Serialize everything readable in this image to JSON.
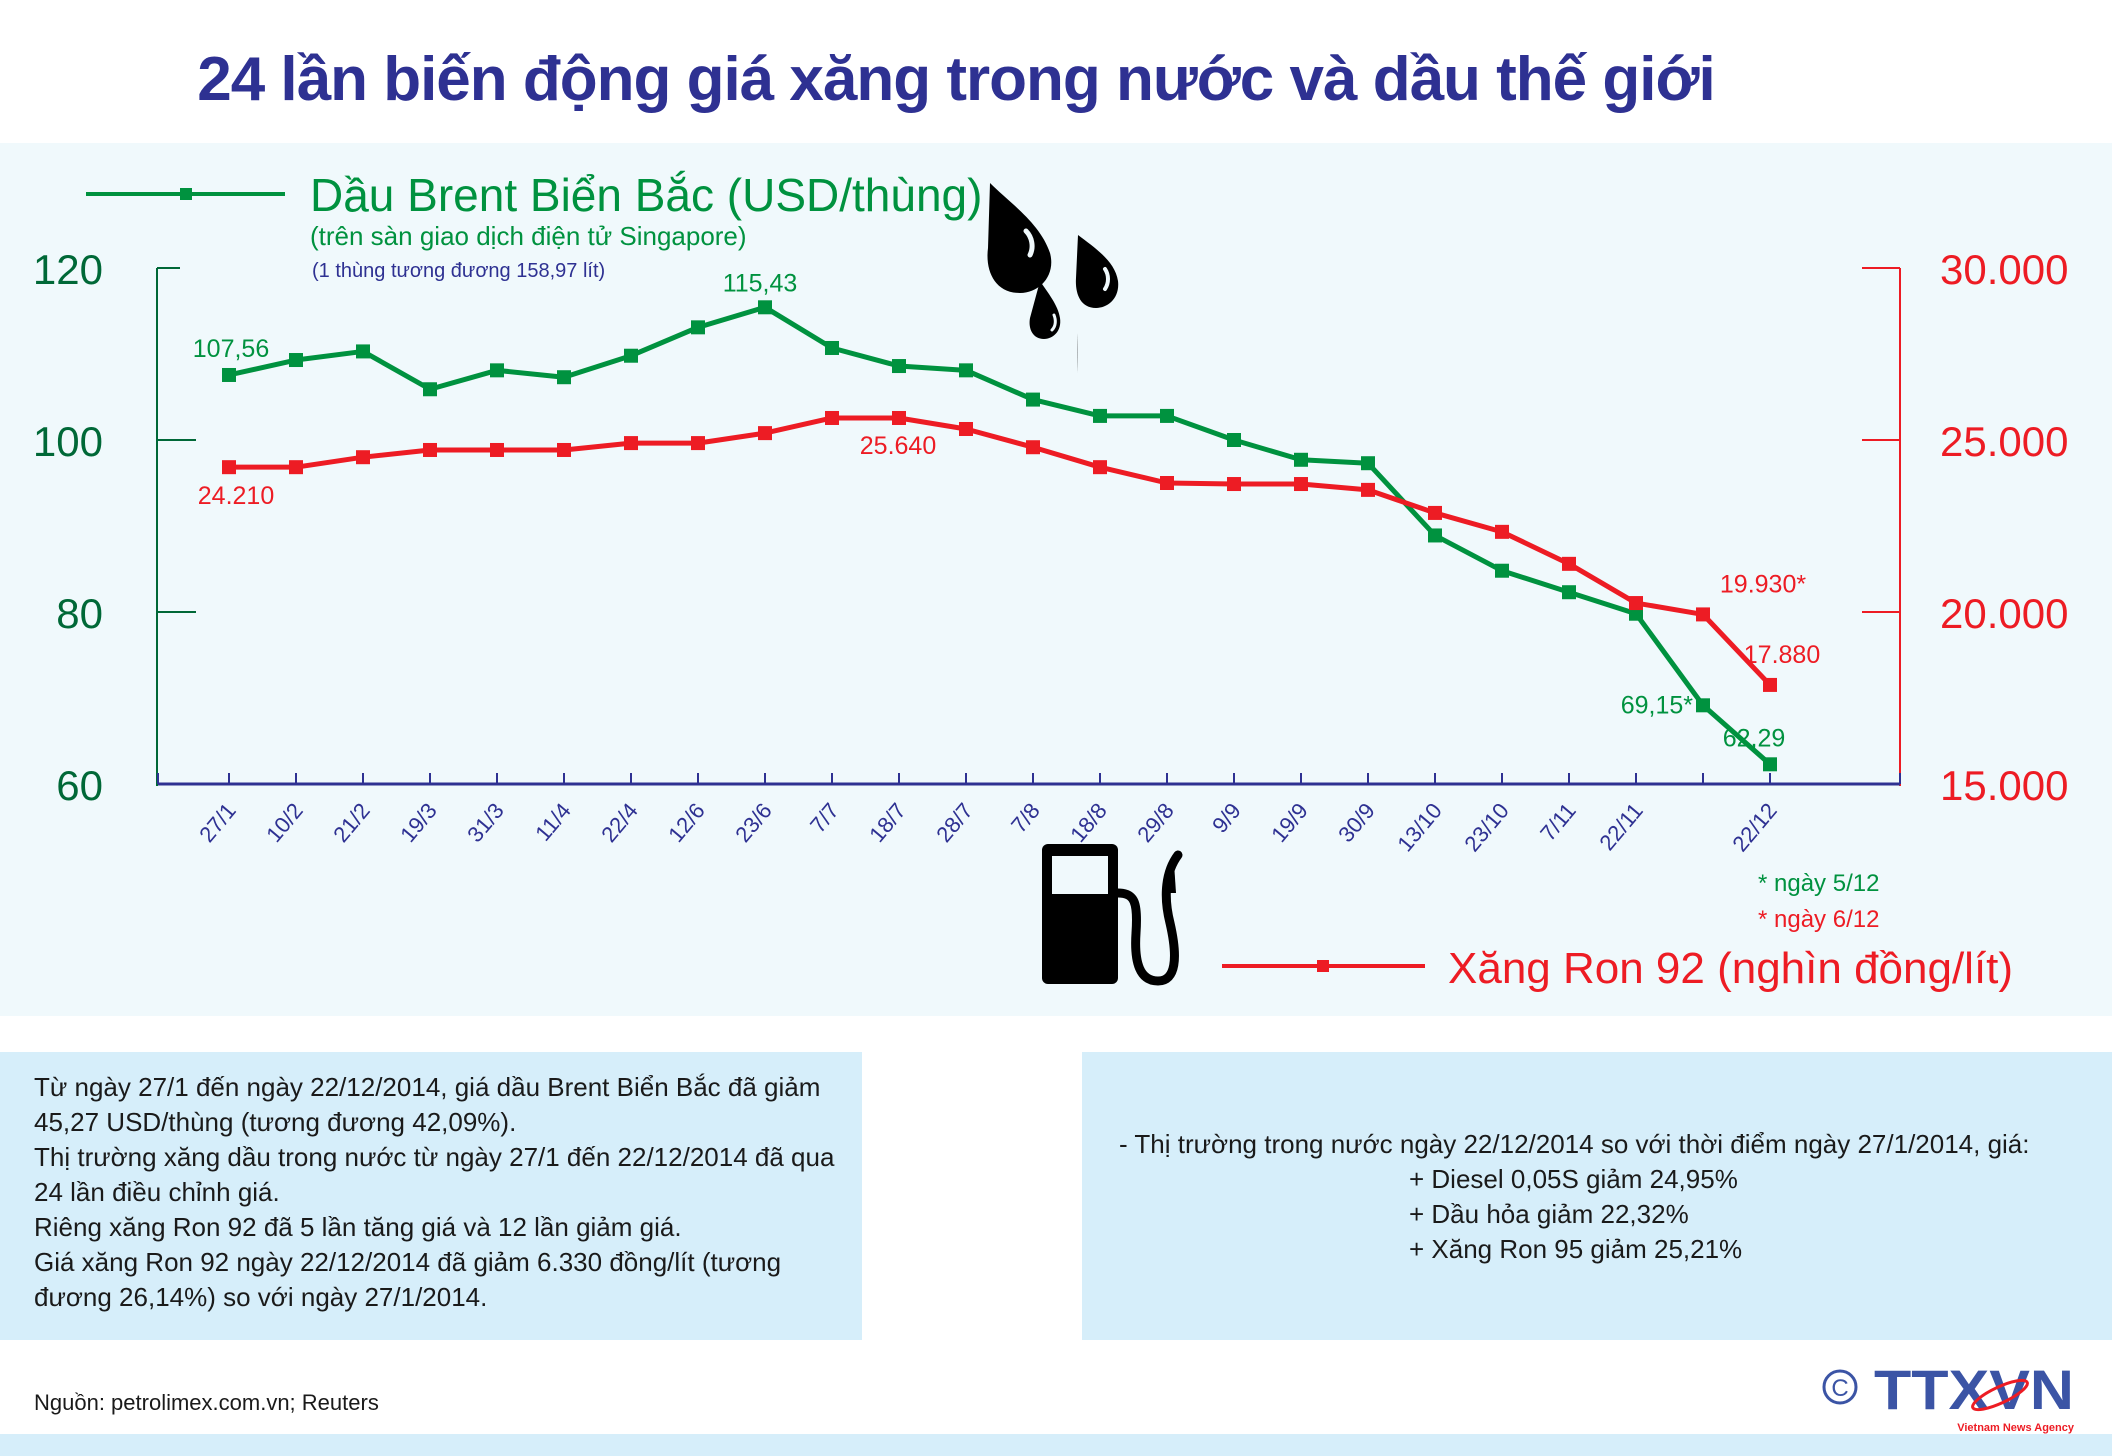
{
  "title": "24 lần biến động giá xăng trong nước và dầu thế giới",
  "legend": {
    "brent": {
      "label": "Dầu Brent Biển Bắc (USD/thùng)",
      "sublabel": "(trên sàn giao dịch điện tử Singapore)",
      "note": "(1 thùng tương đương 158,97 lít)",
      "color": "#00923f"
    },
    "ron92": {
      "label": "Xăng Ron 92 (nghìn đồng/lít)",
      "color": "#ed1c24"
    }
  },
  "footnotes": {
    "brent": "* ngày 5/12",
    "ron92": "* ngày 6/12"
  },
  "chart_data": {
    "type": "line",
    "title": "24 lần biến động giá xăng trong nước và dầu thế giới",
    "xlabel": "",
    "categories": [
      "27/1",
      "10/2",
      "21/2",
      "19/3",
      "31/3",
      "11/4",
      "22/4",
      "12/6",
      "23/6",
      "7/7",
      "18/7",
      "28/7",
      "7/8",
      "18/8",
      "29/8",
      "9/9",
      "19/9",
      "30/9",
      "13/10",
      "23/10",
      "7/11",
      "22/11",
      "5/12-6/12",
      "22/12"
    ],
    "x_tick_labels": [
      "27/1",
      "10/2",
      "21/2",
      "19/3",
      "31/3",
      "11/4",
      "22/4",
      "12/6",
      "23/6",
      "7/7",
      "18/7",
      "28/7",
      "7/8",
      "18/8",
      "29/8",
      "9/9",
      "19/9",
      "30/9",
      "13/10",
      "23/10",
      "7/11",
      "22/11",
      "",
      "22/12"
    ],
    "series": [
      {
        "name": "Dầu Brent Biển Bắc (USD/thùng)",
        "axis": "left",
        "color": "#00923f",
        "values": [
          107.56,
          109.3,
          110.3,
          105.9,
          108.1,
          107.3,
          109.8,
          113.1,
          115.43,
          110.7,
          108.6,
          108.1,
          104.7,
          102.8,
          102.8,
          100.0,
          97.7,
          97.3,
          88.9,
          84.8,
          82.3,
          79.8,
          69.15,
          62.29
        ],
        "labels": {
          "0": "107,56",
          "8": "115,43",
          "22": "69,15*",
          "23": "62,29"
        }
      },
      {
        "name": "Xăng Ron 92 (nghìn đồng/lít)",
        "axis": "right",
        "color": "#ed1c24",
        "values": [
          24210,
          24210,
          24500,
          24710,
          24710,
          24710,
          24910,
          24910,
          25200,
          25640,
          25640,
          25320,
          24790,
          24210,
          23750,
          23720,
          23720,
          23550,
          22880,
          22330,
          21400,
          20260,
          19930,
          17880
        ],
        "labels": {
          "0": "24.210",
          "10": "25.640",
          "22": "19.930*",
          "23": "17.880"
        }
      }
    ],
    "y_left": {
      "ticks": [
        "120",
        "100",
        "80",
        "60"
      ],
      "range": [
        60,
        120
      ],
      "color": "#006837"
    },
    "y_right": {
      "ticks": [
        "30.000",
        "25.000",
        "20.000",
        "15.000"
      ],
      "range": [
        15000,
        30000
      ],
      "color": "#ed1c24"
    },
    "grid": false,
    "legend_position": "top-left (Brent) / bottom-right (Ron 92)"
  },
  "summary_left": [
    "Từ ngày 27/1 đến ngày 22/12/2014, giá dầu Brent Biển Bắc đã giảm 45,27 USD/thùng (tương đương 42,09%).",
    "Thị trường xăng dầu trong nước từ ngày 27/1 đến 22/12/2014 đã qua 24 lần điều chỉnh giá.",
    "Riêng xăng Ron 92 đã 5 lần tăng giá và 12 lần giảm giá.",
    "Giá xăng Ron 92 ngày 22/12/2014 đã giảm 6.330 đồng/lít (tương đương 26,14%) so với ngày 27/1/2014."
  ],
  "summary_right": {
    "lead": "- Thị trường trong nước ngày 22/12/2014 so với thời điểm ngày 27/1/2014, giá:",
    "items": [
      "+ Diesel 0,05S giảm 24,95%",
      "+ Dầu hỏa giảm 22,32%",
      "+ Xăng Ron 95 giảm 25,21%"
    ]
  },
  "source": "Nguồn: petrolimex.com.vn; Reuters",
  "logo": {
    "text": "TTXVN",
    "tagline": "Vietnam News Agency",
    "copyright": "©"
  },
  "icons": {
    "drops": "oil-drops-icon",
    "pump": "fuel-pump-icon"
  }
}
